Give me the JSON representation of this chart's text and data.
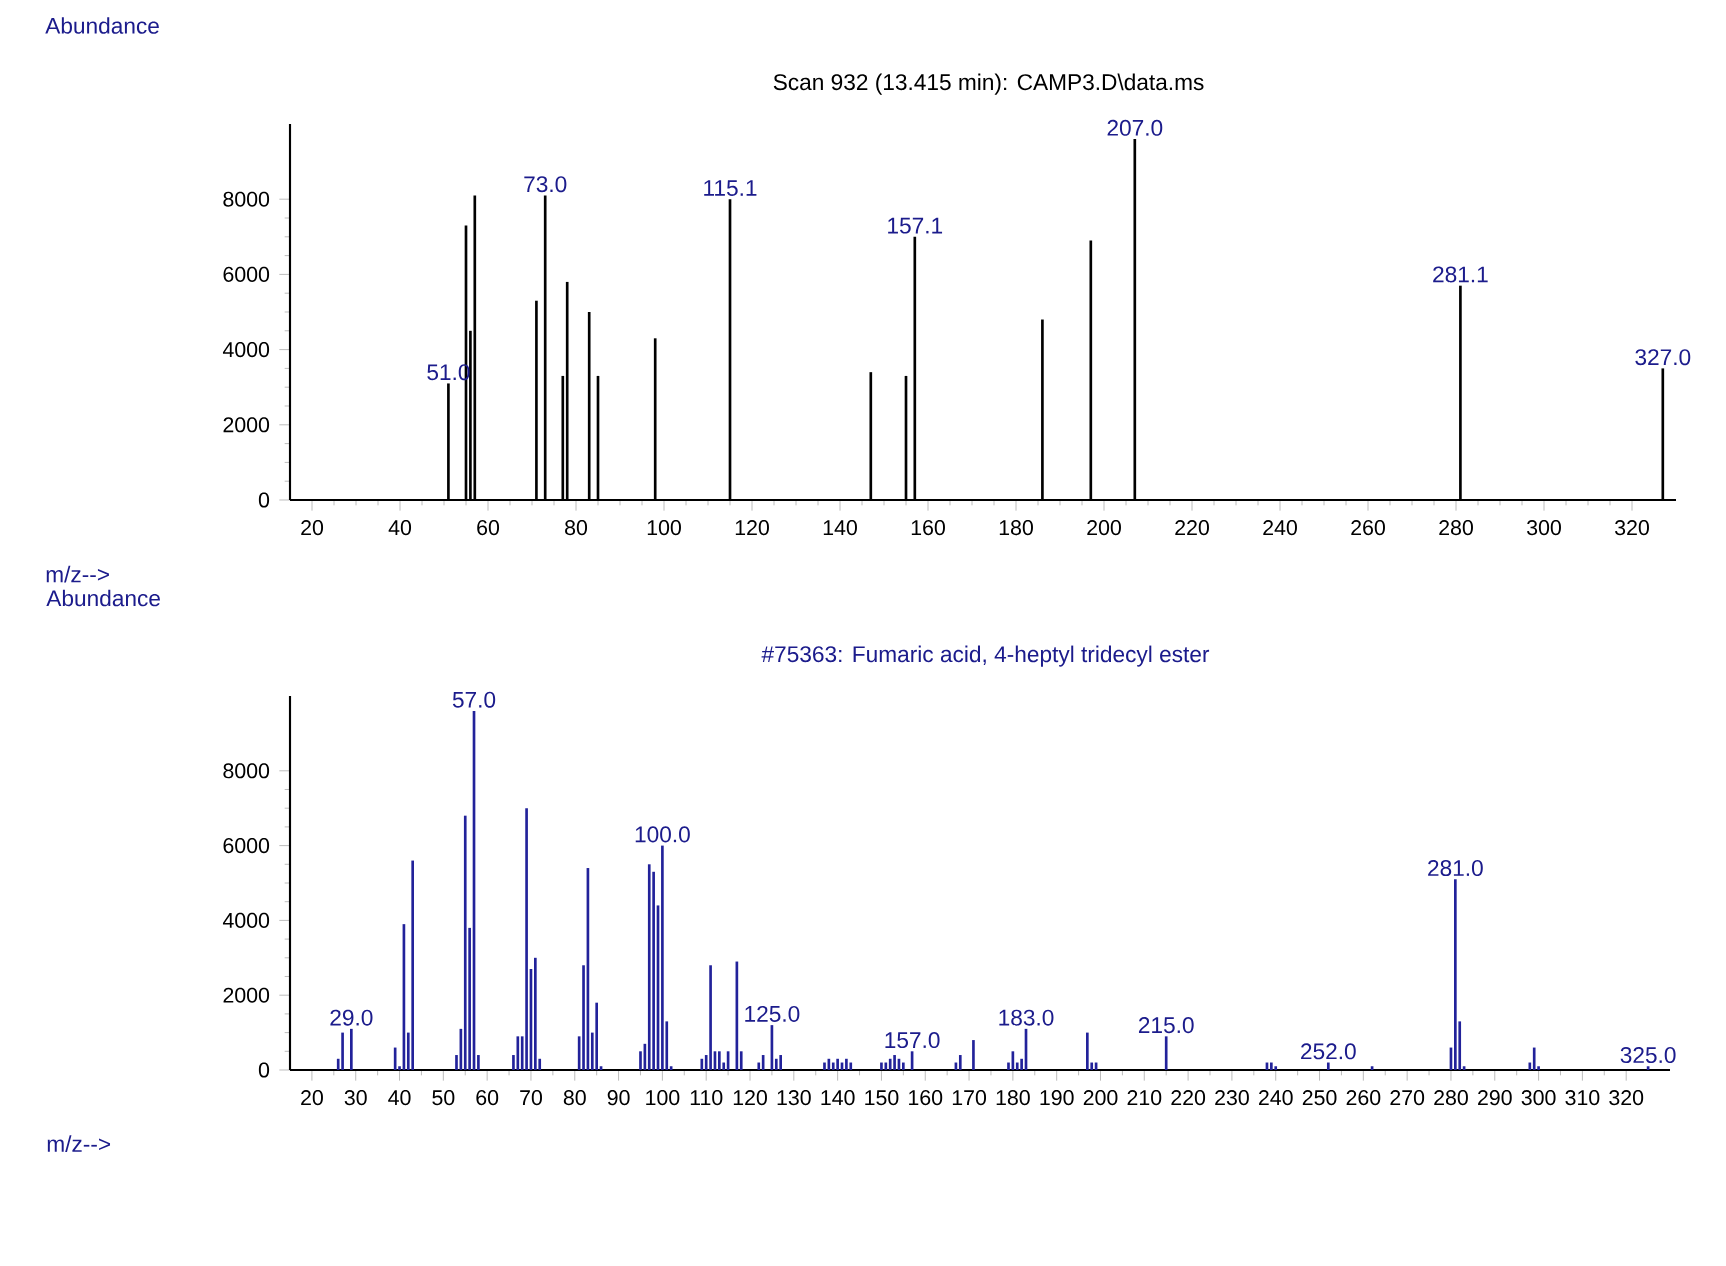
{
  "chart_data": [
    {
      "type": "bar",
      "title": "Scan 932 (13.415 min): CAMP3.D\\data.ms",
      "xlabel": "m/z-->",
      "ylabel": "Abundance",
      "color": "#000000",
      "x": [
        51,
        55,
        56,
        57,
        71,
        73,
        77,
        78,
        83,
        85,
        98,
        115,
        147,
        155,
        157,
        186,
        197,
        207,
        281,
        327
      ],
      "values": [
        3100,
        7300,
        4500,
        8100,
        5300,
        8100,
        3300,
        5800,
        5000,
        3300,
        4300,
        8000,
        3400,
        3300,
        7000,
        4800,
        6900,
        9600,
        5700,
        3500
      ],
      "xlim": [
        15,
        330
      ],
      "ylim": [
        0,
        10000
      ],
      "xticks": [
        20,
        40,
        60,
        80,
        100,
        120,
        140,
        160,
        180,
        200,
        220,
        240,
        260,
        280,
        300,
        320
      ],
      "yticks": [
        0,
        2000,
        4000,
        6000,
        8000
      ],
      "annotations": [
        {
          "text": "51.0",
          "x": 51,
          "y": 3100
        },
        {
          "text": "73.0",
          "x": 73,
          "y": 8100
        },
        {
          "text": "115.1",
          "x": 115,
          "y": 8000
        },
        {
          "text": "157.1",
          "x": 157,
          "y": 7000
        },
        {
          "text": "207.0",
          "x": 207,
          "y": 9600
        },
        {
          "text": "281.1",
          "x": 281,
          "y": 5700
        },
        {
          "text": "327.0",
          "x": 327,
          "y": 3500
        }
      ]
    },
    {
      "type": "bar",
      "title": "#75363: Fumaric acid, 4-heptyl tridecyl ester",
      "xlabel": "m/z-->",
      "ylabel": "Abundance",
      "color": "#22229a",
      "x": [
        26,
        27,
        29,
        39,
        40,
        41,
        42,
        43,
        53,
        54,
        55,
        56,
        57,
        58,
        66,
        67,
        68,
        69,
        70,
        71,
        72,
        81,
        82,
        83,
        84,
        85,
        86,
        95,
        96,
        97,
        98,
        99,
        100,
        101,
        102,
        109,
        110,
        111,
        112,
        113,
        114,
        115,
        117,
        118,
        122,
        123,
        125,
        126,
        127,
        137,
        138,
        139,
        140,
        141,
        142,
        143,
        150,
        151,
        152,
        153,
        154,
        155,
        157,
        167,
        168,
        171,
        179,
        180,
        181,
        182,
        183,
        197,
        198,
        199,
        215,
        238,
        239,
        240,
        252,
        262,
        280,
        281,
        282,
        283,
        298,
        299,
        300,
        325
      ],
      "values": [
        300,
        1000,
        1100,
        600,
        100,
        3900,
        1000,
        5600,
        400,
        1100,
        6800,
        3800,
        9600,
        400,
        400,
        900,
        900,
        7000,
        2700,
        3000,
        300,
        900,
        2800,
        5400,
        1000,
        1800,
        100,
        500,
        700,
        5500,
        5300,
        4400,
        6000,
        1300,
        100,
        300,
        400,
        2800,
        500,
        500,
        200,
        500,
        2900,
        500,
        200,
        400,
        1200,
        300,
        400,
        200,
        300,
        200,
        300,
        200,
        300,
        200,
        200,
        200,
        300,
        400,
        300,
        200,
        500,
        200,
        400,
        800,
        200,
        500,
        200,
        300,
        1100,
        1000,
        200,
        200,
        900,
        200,
        200,
        100,
        200,
        100,
        600,
        5100,
        1300,
        100,
        200,
        600,
        100,
        100
      ],
      "xlim": [
        15,
        330
      ],
      "ylim": [
        0,
        10000
      ],
      "xticks": [
        20,
        30,
        40,
        50,
        60,
        70,
        80,
        90,
        100,
        110,
        120,
        130,
        140,
        150,
        160,
        170,
        180,
        190,
        200,
        210,
        220,
        230,
        240,
        250,
        260,
        270,
        280,
        290,
        300,
        310,
        320
      ],
      "yticks": [
        0,
        2000,
        4000,
        6000,
        8000
      ],
      "annotations": [
        {
          "text": "29.0",
          "x": 29,
          "y": 1100
        },
        {
          "text": "57.0",
          "x": 57,
          "y": 9600
        },
        {
          "text": "100.0",
          "x": 100,
          "y": 6000
        },
        {
          "text": "125.0",
          "x": 125,
          "y": 1200
        },
        {
          "text": "157.0",
          "x": 157,
          "y": 500
        },
        {
          "text": "183.0",
          "x": 183,
          "y": 1100
        },
        {
          "text": "215.0",
          "x": 215,
          "y": 900
        },
        {
          "text": "252.0",
          "x": 252,
          "y": 200
        },
        {
          "text": "281.0",
          "x": 281,
          "y": 5100
        },
        {
          "text": "325.0",
          "x": 325,
          "y": 100
        }
      ]
    }
  ]
}
